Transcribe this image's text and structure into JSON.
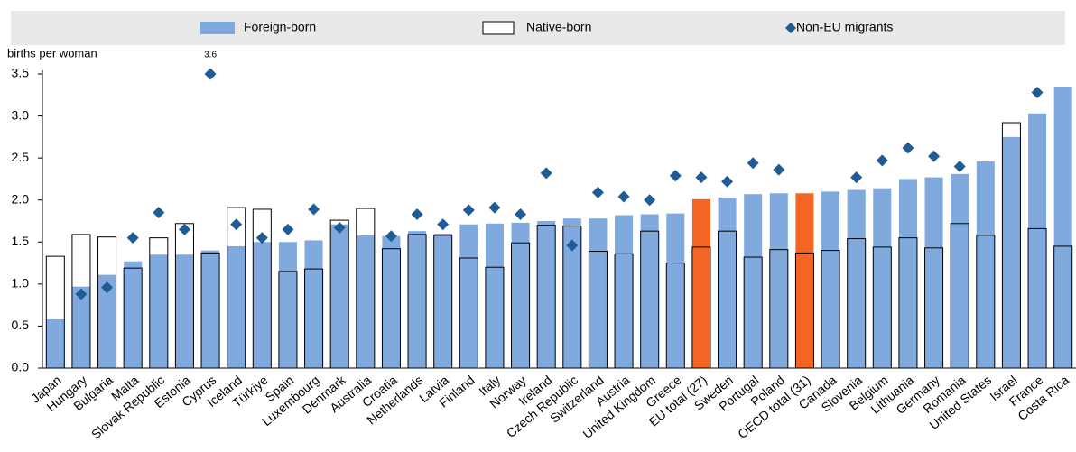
{
  "chart_data": {
    "type": "bar",
    "y_label": "births per woman",
    "categories": [
      "Japan",
      "Hungary",
      "Bulgaria",
      "Malta",
      "Slovak Republic",
      "Estonia",
      "Cyprus",
      "Iceland",
      "Türkiye",
      "Spain",
      "Luxembourg",
      "Denmark",
      "Australia",
      "Croatia",
      "Netherlands",
      "Latvia",
      "Finland",
      "Italy",
      "Norway",
      "Ireland",
      "Czech Republic",
      "Switzerland",
      "Austria",
      "United Kingdom",
      "Greece",
      "EU total (27)",
      "Sweden",
      "Portugal",
      "Poland",
      "OECD total (31)",
      "Canada",
      "Slovenia",
      "Belgium",
      "Lithuania",
      "Germany",
      "Romania",
      "United States",
      "Israel",
      "France",
      "Costa Rica"
    ],
    "series": [
      {
        "name": "Foreign-born",
        "style": "filled",
        "color": "#80a9dd",
        "point_colors": [
          "#80a9dd",
          "#80a9dd",
          "#80a9dd",
          "#80a9dd",
          "#80a9dd",
          "#80a9dd",
          "#80a9dd",
          "#80a9dd",
          "#80a9dd",
          "#80a9dd",
          "#80a9dd",
          "#80a9dd",
          "#80a9dd",
          "#80a9dd",
          "#80a9dd",
          "#80a9dd",
          "#80a9dd",
          "#80a9dd",
          "#80a9dd",
          "#80a9dd",
          "#80a9dd",
          "#80a9dd",
          "#80a9dd",
          "#80a9dd",
          "#80a9dd",
          "#f26522",
          "#80a9dd",
          "#80a9dd",
          "#80a9dd",
          "#f26522",
          "#80a9dd",
          "#80a9dd",
          "#80a9dd",
          "#80a9dd",
          "#80a9dd",
          "#80a9dd",
          "#80a9dd",
          "#80a9dd",
          "#80a9dd",
          "#80a9dd"
        ],
        "values": [
          0.58,
          0.97,
          1.11,
          1.27,
          1.35,
          1.35,
          1.4,
          1.45,
          1.5,
          1.5,
          1.52,
          1.71,
          1.58,
          1.57,
          1.63,
          1.6,
          1.71,
          1.72,
          1.73,
          1.75,
          1.78,
          1.78,
          1.82,
          1.83,
          1.84,
          2.01,
          2.03,
          2.07,
          2.08,
          2.08,
          2.1,
          2.12,
          2.14,
          2.25,
          2.27,
          2.31,
          2.46,
          2.75,
          3.03,
          3.35
        ]
      },
      {
        "name": "Native-born",
        "style": "outline",
        "color": "#000000",
        "values": [
          1.33,
          1.59,
          1.56,
          1.19,
          1.55,
          1.72,
          1.37,
          1.91,
          1.89,
          1.15,
          1.18,
          1.76,
          1.9,
          1.42,
          1.59,
          1.58,
          1.31,
          1.2,
          1.49,
          1.7,
          1.69,
          1.39,
          1.36,
          1.63,
          1.25,
          1.44,
          1.63,
          1.32,
          1.41,
          1.37,
          1.4,
          1.54,
          1.44,
          1.55,
          1.43,
          1.72,
          1.58,
          2.92,
          1.66,
          1.45
        ]
      },
      {
        "name": "Non-EU migrants",
        "style": "diamond",
        "color": "#1f5c96",
        "values": [
          null,
          0.88,
          0.96,
          1.55,
          1.85,
          1.65,
          3.6,
          1.71,
          1.55,
          1.65,
          1.89,
          1.67,
          null,
          1.57,
          1.83,
          1.71,
          1.88,
          1.91,
          1.83,
          2.32,
          1.46,
          2.09,
          2.04,
          2.0,
          2.29,
          2.27,
          2.22,
          2.44,
          2.36,
          null,
          null,
          2.27,
          2.47,
          2.62,
          2.52,
          2.4,
          null,
          null,
          3.28,
          null
        ],
        "value_labels": [
          null,
          null,
          null,
          null,
          null,
          null,
          "3.6",
          null,
          null,
          null,
          null,
          null,
          null,
          null,
          null,
          null,
          null,
          null,
          null,
          null,
          null,
          null,
          null,
          null,
          null,
          null,
          null,
          null,
          null,
          null,
          null,
          null,
          null,
          null,
          null,
          null,
          null,
          null,
          null,
          null
        ]
      }
    ],
    "ylim": [
      0,
      3.5
    ],
    "yticks": [
      {
        "value": 0,
        "label": "0.0"
      },
      0.5,
      {
        "value": 1,
        "label": "1.0"
      },
      1.5,
      {
        "value": 2,
        "label": "2.0"
      },
      2.5,
      {
        "value": 3,
        "label": "3.0"
      },
      3.5
    ],
    "grid": false,
    "legend": "top"
  }
}
